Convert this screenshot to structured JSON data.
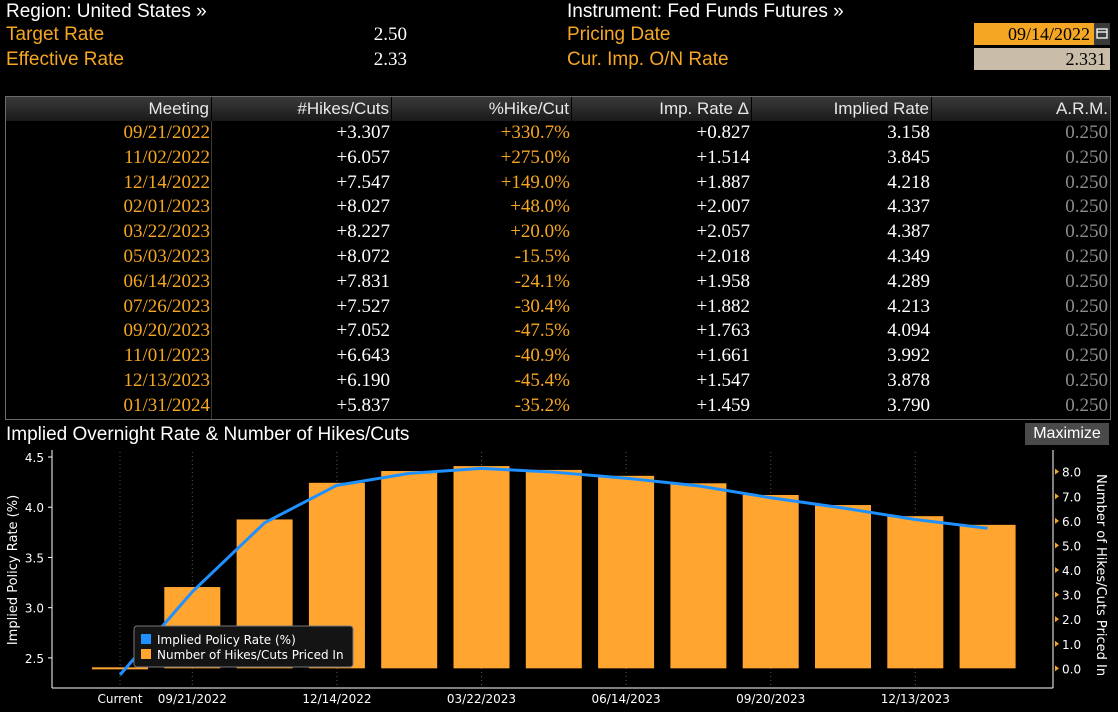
{
  "header": {
    "region_label": "Region: United States »",
    "target_rate_label": "Target Rate",
    "target_rate_value": "2.50",
    "effective_rate_label": "Effective Rate",
    "effective_rate_value": "2.33",
    "instrument_label": "Instrument: Fed Funds Futures »",
    "pricing_date_label": "Pricing Date",
    "pricing_date_value": "09/14/2022",
    "calendar_icon": "calendar-icon",
    "cur_imp_label": "Cur. Imp. O/N Rate",
    "cur_imp_value": "2.331"
  },
  "table": {
    "columns": [
      "Meeting",
      "#Hikes/Cuts",
      "%Hike/Cut",
      "Imp. Rate Δ",
      "Implied Rate",
      "A.R.M."
    ],
    "rows": [
      [
        "09/21/2022",
        "+3.307",
        "+330.7%",
        "+0.827",
        "3.158",
        "0.250"
      ],
      [
        "11/02/2022",
        "+6.057",
        "+275.0%",
        "+1.514",
        "3.845",
        "0.250"
      ],
      [
        "12/14/2022",
        "+7.547",
        "+149.0%",
        "+1.887",
        "4.218",
        "0.250"
      ],
      [
        "02/01/2023",
        "+8.027",
        "+48.0%",
        "+2.007",
        "4.337",
        "0.250"
      ],
      [
        "03/22/2023",
        "+8.227",
        "+20.0%",
        "+2.057",
        "4.387",
        "0.250"
      ],
      [
        "05/03/2023",
        "+8.072",
        "-15.5%",
        "+2.018",
        "4.349",
        "0.250"
      ],
      [
        "06/14/2023",
        "+7.831",
        "-24.1%",
        "+1.958",
        "4.289",
        "0.250"
      ],
      [
        "07/26/2023",
        "+7.527",
        "-30.4%",
        "+1.882",
        "4.213",
        "0.250"
      ],
      [
        "09/20/2023",
        "+7.052",
        "-47.5%",
        "+1.763",
        "4.094",
        "0.250"
      ],
      [
        "11/01/2023",
        "+6.643",
        "-40.9%",
        "+1.661",
        "3.992",
        "0.250"
      ],
      [
        "12/13/2023",
        "+6.190",
        "-45.4%",
        "+1.547",
        "3.878",
        "0.250"
      ],
      [
        "01/31/2024",
        "+5.837",
        "-35.2%",
        "+1.459",
        "3.790",
        "0.250"
      ]
    ]
  },
  "chart_header": {
    "title": "Implied Overnight Rate & Number of Hikes/Cuts",
    "maximize_label": "Maximize"
  },
  "colors": {
    "accent": "#f5a623",
    "bar": "#ffa530",
    "line": "#1e90ff",
    "background": "#000000"
  },
  "chart_data": {
    "type": "bar",
    "categories": [
      "Current",
      "09/21/2022",
      "11/02/2022",
      "12/14/2022",
      "02/01/2023",
      "03/22/2023",
      "05/03/2023",
      "06/14/2023",
      "07/26/2023",
      "09/20/2023",
      "11/01/2023",
      "12/13/2023",
      "01/31/2024"
    ],
    "x_tick_labels": [
      "Current",
      "09/21/2022",
      "12/14/2022",
      "03/22/2023",
      "06/14/2023",
      "09/20/2023",
      "12/13/2023"
    ],
    "series": [
      {
        "name": "Implied Policy Rate (%)",
        "type": "line",
        "axis": "left",
        "values": [
          2.331,
          3.158,
          3.845,
          4.218,
          4.337,
          4.387,
          4.349,
          4.289,
          4.213,
          4.094,
          3.992,
          3.878,
          3.79
        ]
      },
      {
        "name": "Number of Hikes/Cuts Priced In",
        "type": "bar",
        "axis": "right",
        "values": [
          0,
          3.307,
          6.057,
          7.547,
          8.027,
          8.227,
          8.072,
          7.831,
          7.527,
          7.052,
          6.643,
          6.19,
          5.837
        ]
      }
    ],
    "ylabel": "Implied Policy Rate (%)",
    "ylim": [
      2.2,
      4.55
    ],
    "yticks": [
      2.5,
      3.0,
      3.5,
      4.0,
      4.5
    ],
    "y2label": "Number of Hikes/Cuts Priced In",
    "y2lim": [
      -0.8,
      8.8
    ],
    "y2ticks": [
      0.0,
      1.0,
      2.0,
      3.0,
      4.0,
      5.0,
      6.0,
      7.0,
      8.0
    ],
    "grid": "vertical dotted",
    "legend": "bottom-left"
  }
}
